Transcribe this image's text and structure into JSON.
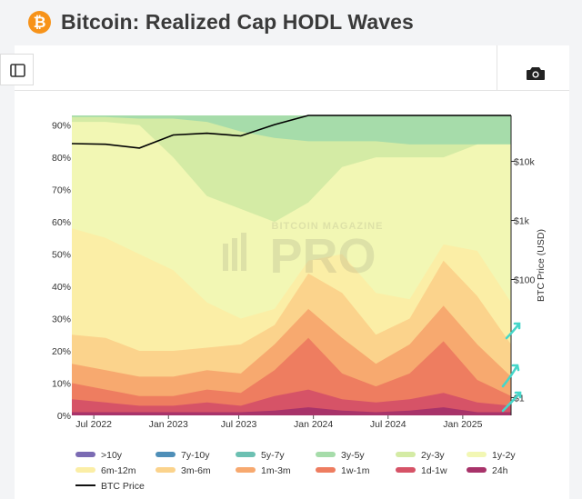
{
  "page": {
    "title": "Bitcoin: Realized Cap HODL Waves",
    "logo_glyph": "₿",
    "sidebar_icon": "sidebar-toggle-icon",
    "camera_icon": "camera-icon",
    "watermark_top": "BITCOIN MAGAZINE",
    "watermark_main": "PRO"
  },
  "chart_data": {
    "type": "area",
    "stacked": true,
    "title": "",
    "xlabel": "",
    "ylabel_left": "",
    "ylabel_right": "BTC Price (USD)",
    "x_tick_labels": [
      "Jul 2022",
      "Jan 2023",
      "Jul 2023",
      "Jan 2024",
      "Jul 2024",
      "Jan 2025"
    ],
    "x_dates": [
      "Jul 2022",
      "Oct 2022",
      "Jan 2023",
      "Apr 2023",
      "Jul 2023",
      "Oct 2023",
      "Jan 2024",
      "Mar 2024",
      "May 2024",
      "Jul 2024",
      "Oct 2024",
      "Dec 2024",
      "Mar 2025",
      "May 2025"
    ],
    "y_left_ticks": [
      "0%",
      "10%",
      "20%",
      "30%",
      "40%",
      "50%",
      "60%",
      "70%",
      "80%",
      "90%"
    ],
    "y_left_range": [
      0,
      93
    ],
    "y_right_scale": "log",
    "y_right_ticks": [
      "$1",
      "$100",
      "$1k",
      "$10k"
    ],
    "bands_cumulative_top_percent": {
      "24h": [
        1,
        1,
        1,
        1,
        1,
        1,
        1.5,
        2.5,
        1.5,
        1,
        1.5,
        2.5,
        1,
        1
      ],
      "1d-1w": [
        5,
        4,
        3,
        3,
        4,
        3,
        6,
        8,
        5,
        4,
        5,
        7,
        4,
        3
      ],
      "1w-1m": [
        10,
        8,
        6,
        6,
        8,
        7,
        14,
        24,
        13,
        9,
        13,
        23,
        11,
        6
      ],
      "1m-3m": [
        16,
        14,
        12,
        12,
        14,
        13,
        22,
        33,
        24,
        16,
        22,
        34,
        22,
        12
      ],
      "3m-6m": [
        25,
        24,
        20,
        20,
        21,
        22,
        28,
        44,
        38,
        25,
        30,
        48,
        37,
        22
      ],
      "6m-12m": [
        58,
        55,
        50,
        45,
        35,
        30,
        33,
        48,
        50,
        38,
        36,
        53,
        51,
        35
      ],
      "1y-2y": [
        91,
        91,
        90,
        80,
        68,
        64,
        60,
        66,
        77,
        80,
        80,
        80,
        84,
        84
      ],
      "2y-3y": [
        92.5,
        92.5,
        92,
        92,
        91,
        88,
        86,
        85,
        85,
        85,
        84,
        84,
        84,
        84
      ],
      "3y-5y": [
        93,
        93,
        93,
        93,
        93,
        93,
        93,
        93,
        93,
        93,
        93,
        93,
        93,
        93
      ],
      "5y-7y": [
        93,
        93,
        93,
        93,
        93,
        93,
        93,
        93,
        93,
        93,
        93,
        93,
        93,
        93
      ],
      "7y-10y": [
        93,
        93,
        93,
        93,
        93,
        93,
        93,
        93,
        93,
        93,
        93,
        93,
        93,
        93
      ],
      ">10y": [
        93,
        93,
        93,
        93,
        93,
        93,
        93,
        93,
        93,
        93,
        93,
        93,
        93,
        93
      ]
    },
    "btc_price_usd": [
      20000,
      19500,
      16800,
      28000,
      30000,
      27000,
      42000,
      70000,
      65000,
      60000,
      62000,
      97000,
      88000,
      103000
    ],
    "series": [
      {
        "name": ">10y",
        "color": "#7b6bb3"
      },
      {
        "name": "7y-10y",
        "color": "#4f8fb8"
      },
      {
        "name": "5y-7y",
        "color": "#6cc0b2"
      },
      {
        "name": "3y-5y",
        "color": "#a6dcaa"
      },
      {
        "name": "2y-3y",
        "color": "#d4eba5"
      },
      {
        "name": "1y-2y",
        "color": "#f2f7b4"
      },
      {
        "name": "6m-12m",
        "color": "#fbeea6"
      },
      {
        "name": "3m-6m",
        "color": "#fbd38c"
      },
      {
        "name": "1m-3m",
        "color": "#f7a96f"
      },
      {
        "name": "1w-1m",
        "color": "#ee7d60"
      },
      {
        "name": "1d-1w",
        "color": "#d65367"
      },
      {
        "name": "24h",
        "color": "#a8336a"
      },
      {
        "name": "BTC Price",
        "color": "#000000"
      }
    ],
    "legend_placement": "bottom",
    "grid": false
  }
}
